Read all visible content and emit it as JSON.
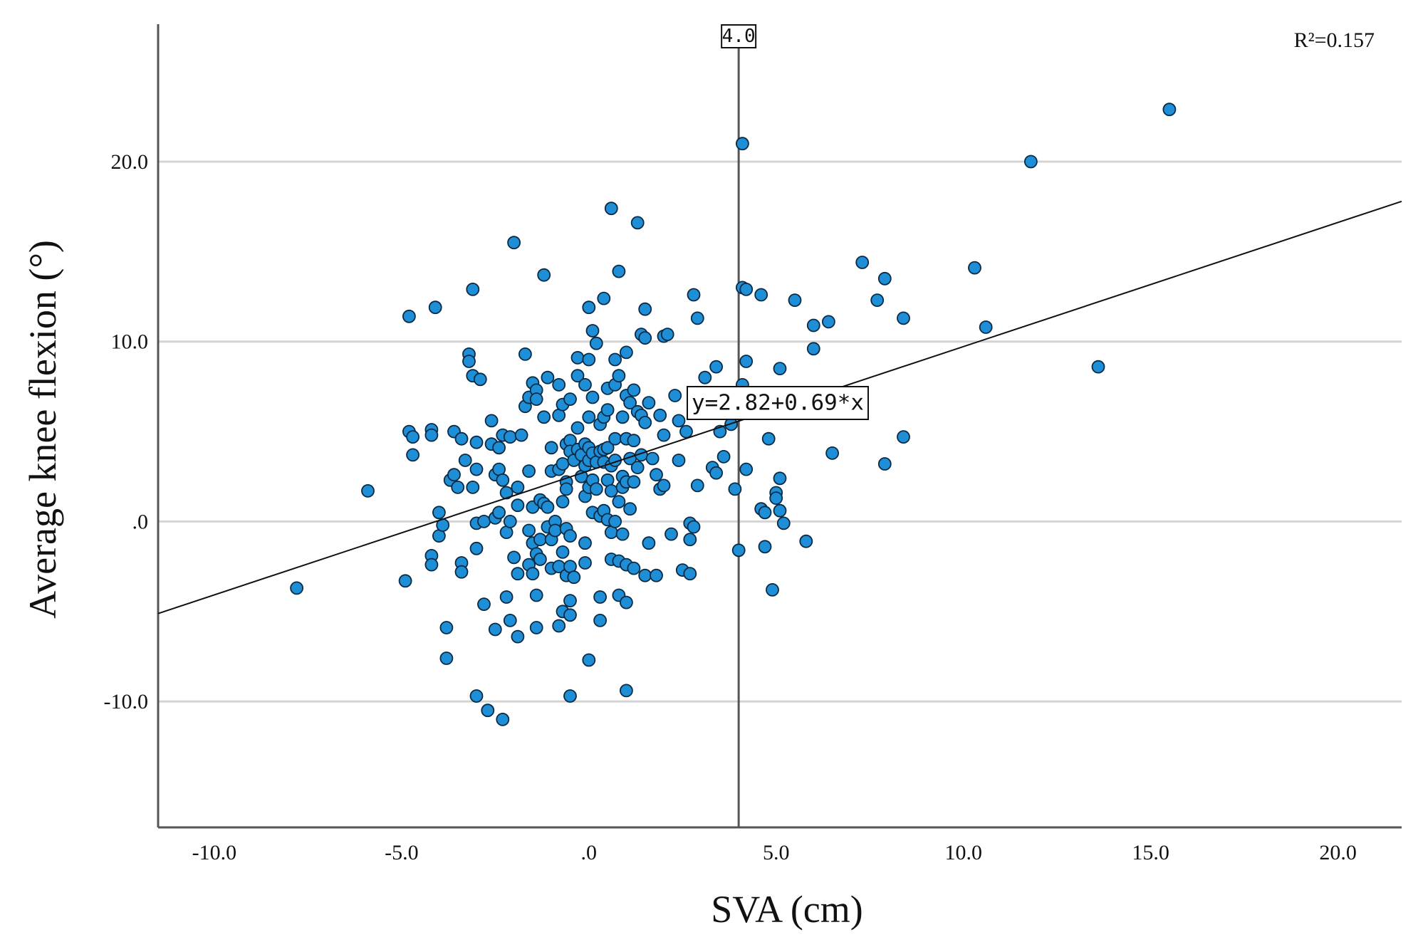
{
  "chart_data": {
    "type": "scatter",
    "title": "",
    "xlabel": "SVA (cm)",
    "ylabel": "Average knee flexion (°)",
    "xlim": [
      -11.5,
      21.7
    ],
    "ylim": [
      -17,
      27.4
    ],
    "x_ticks": [
      -10,
      -5,
      0,
      5,
      10,
      15,
      20
    ],
    "x_tick_labels": [
      "-10.0",
      "-5.0",
      ".0",
      "5.0",
      "10.0",
      "15.0",
      "20.0"
    ],
    "y_ticks": [
      -10,
      0,
      10,
      20
    ],
    "y_tick_labels": [
      "-10.0",
      ".0",
      "10.0",
      "20.0"
    ],
    "grid": "horizontal",
    "point_color": "#1e8fd6",
    "point_edge_color": "#0a2a44",
    "fit_line": {
      "intercept": 2.82,
      "slope": 0.69,
      "label": "y=2.82+0.69*x"
    },
    "reference_line": {
      "x": 4.0,
      "label": "4.0"
    },
    "r_squared_label": "R²=0.157",
    "points": [
      [
        -7.8,
        -3.7
      ],
      [
        -5.9,
        1.7
      ],
      [
        -4.9,
        -3.3
      ],
      [
        -4.8,
        11.4
      ],
      [
        -4.8,
        5.0
      ],
      [
        -4.7,
        4.7
      ],
      [
        -4.7,
        3.7
      ],
      [
        -4.2,
        5.1
      ],
      [
        -4.2,
        4.8
      ],
      [
        -4.2,
        -1.9
      ],
      [
        -4.2,
        -2.4
      ],
      [
        -4.1,
        11.9
      ],
      [
        -4.0,
        0.5
      ],
      [
        -4.0,
        -0.8
      ],
      [
        -3.9,
        -0.2
      ],
      [
        -3.8,
        -5.9
      ],
      [
        -3.8,
        -7.6
      ],
      [
        -3.7,
        2.3
      ],
      [
        -3.6,
        2.6
      ],
      [
        -3.6,
        5.0
      ],
      [
        -3.5,
        1.9
      ],
      [
        -3.4,
        4.6
      ],
      [
        -3.4,
        -2.3
      ],
      [
        -3.4,
        -2.8
      ],
      [
        -3.3,
        3.4
      ],
      [
        -3.2,
        9.3
      ],
      [
        -3.2,
        8.9
      ],
      [
        -3.1,
        8.1
      ],
      [
        -3.1,
        12.9
      ],
      [
        -3.1,
        1.9
      ],
      [
        -3.0,
        -0.1
      ],
      [
        -3.0,
        -1.5
      ],
      [
        -3.0,
        2.9
      ],
      [
        -3.0,
        4.4
      ],
      [
        -3.0,
        -9.7
      ],
      [
        -2.9,
        7.9
      ],
      [
        -2.8,
        -4.6
      ],
      [
        -2.8,
        0.0
      ],
      [
        -2.7,
        -10.5
      ],
      [
        -2.6,
        4.3
      ],
      [
        -2.6,
        5.6
      ],
      [
        -2.5,
        2.6
      ],
      [
        -2.5,
        0.2
      ],
      [
        -2.5,
        -6.0
      ],
      [
        -2.4,
        0.5
      ],
      [
        -2.4,
        2.9
      ],
      [
        -2.4,
        4.1
      ],
      [
        -2.3,
        -11.0
      ],
      [
        -2.3,
        2.3
      ],
      [
        -2.3,
        4.8
      ],
      [
        -2.2,
        1.6
      ],
      [
        -2.2,
        -0.6
      ],
      [
        -2.2,
        -4.2
      ],
      [
        -2.1,
        0.0
      ],
      [
        -2.1,
        -5.5
      ],
      [
        -2.1,
        4.7
      ],
      [
        -2.0,
        15.5
      ],
      [
        -2.0,
        -2.0
      ],
      [
        -1.9,
        1.9
      ],
      [
        -1.9,
        0.9
      ],
      [
        -1.9,
        -2.9
      ],
      [
        -1.9,
        -6.4
      ],
      [
        -1.8,
        4.8
      ],
      [
        -1.7,
        9.3
      ],
      [
        -1.7,
        6.4
      ],
      [
        -1.6,
        6.9
      ],
      [
        -1.6,
        2.8
      ],
      [
        -1.6,
        -0.5
      ],
      [
        -1.6,
        -2.4
      ],
      [
        -1.5,
        7.7
      ],
      [
        -1.5,
        0.8
      ],
      [
        -1.5,
        -1.2
      ],
      [
        -1.5,
        -2.9
      ],
      [
        -1.4,
        7.3
      ],
      [
        -1.4,
        6.8
      ],
      [
        -1.4,
        -1.8
      ],
      [
        -1.4,
        -4.1
      ],
      [
        -1.4,
        -5.9
      ],
      [
        -1.3,
        1.2
      ],
      [
        -1.3,
        -1.0
      ],
      [
        -1.3,
        -2.1
      ],
      [
        -1.2,
        13.7
      ],
      [
        -1.2,
        5.8
      ],
      [
        -1.2,
        1.0
      ],
      [
        -1.1,
        8.0
      ],
      [
        -1.1,
        0.8
      ],
      [
        -1.1,
        -0.3
      ],
      [
        -1.0,
        -1.0
      ],
      [
        -1.0,
        -2.6
      ],
      [
        -1.0,
        2.8
      ],
      [
        -1.0,
        4.1
      ],
      [
        -0.9,
        0.0
      ],
      [
        -0.9,
        -0.5
      ],
      [
        -0.8,
        7.6
      ],
      [
        -0.8,
        5.9
      ],
      [
        -0.8,
        2.9
      ],
      [
        -0.8,
        -2.5
      ],
      [
        -0.8,
        -5.8
      ],
      [
        -0.7,
        6.5
      ],
      [
        -0.7,
        3.2
      ],
      [
        -0.7,
        1.1
      ],
      [
        -0.7,
        -1.7
      ],
      [
        -0.7,
        -5.0
      ],
      [
        -0.6,
        4.3
      ],
      [
        -0.6,
        2.2
      ],
      [
        -0.6,
        1.8
      ],
      [
        -0.6,
        -0.4
      ],
      [
        -0.6,
        -3.0
      ],
      [
        -0.5,
        6.8
      ],
      [
        -0.5,
        4.5
      ],
      [
        -0.5,
        3.9
      ],
      [
        -0.5,
        -0.8
      ],
      [
        -0.5,
        -2.5
      ],
      [
        -0.5,
        -4.4
      ],
      [
        -0.5,
        -5.2
      ],
      [
        -0.5,
        -9.7
      ],
      [
        -0.4,
        3.4
      ],
      [
        -0.4,
        -3.1
      ],
      [
        -0.3,
        9.1
      ],
      [
        -0.3,
        8.1
      ],
      [
        -0.3,
        5.2
      ],
      [
        -0.3,
        4.0
      ],
      [
        -0.2,
        3.7
      ],
      [
        -0.2,
        2.5
      ],
      [
        -0.1,
        7.6
      ],
      [
        -0.1,
        4.3
      ],
      [
        -0.1,
        3.1
      ],
      [
        -0.1,
        1.4
      ],
      [
        -0.1,
        -1.2
      ],
      [
        -0.1,
        -2.3
      ],
      [
        0.0,
        11.9
      ],
      [
        0.0,
        9.0
      ],
      [
        0.0,
        5.8
      ],
      [
        0.0,
        4.1
      ],
      [
        0.0,
        3.4
      ],
      [
        0.0,
        1.9
      ],
      [
        0.0,
        -7.7
      ],
      [
        0.1,
        10.6
      ],
      [
        0.1,
        6.9
      ],
      [
        0.1,
        3.8
      ],
      [
        0.1,
        2.3
      ],
      [
        0.1,
        0.5
      ],
      [
        0.2,
        9.9
      ],
      [
        0.2,
        3.3
      ],
      [
        0.2,
        1.8
      ],
      [
        0.3,
        5.4
      ],
      [
        0.3,
        3.9
      ],
      [
        0.3,
        0.3
      ],
      [
        0.3,
        -4.2
      ],
      [
        0.3,
        -5.5
      ],
      [
        0.4,
        12.4
      ],
      [
        0.4,
        5.8
      ],
      [
        0.4,
        4.0
      ],
      [
        0.4,
        3.3
      ],
      [
        0.4,
        0.6
      ],
      [
        0.5,
        7.4
      ],
      [
        0.5,
        6.2
      ],
      [
        0.5,
        4.1
      ],
      [
        0.5,
        2.3
      ],
      [
        0.5,
        0.1
      ],
      [
        0.6,
        17.4
      ],
      [
        0.6,
        3.1
      ],
      [
        0.6,
        1.7
      ],
      [
        0.6,
        -0.6
      ],
      [
        0.6,
        -2.1
      ],
      [
        0.7,
        9.0
      ],
      [
        0.7,
        7.6
      ],
      [
        0.7,
        4.6
      ],
      [
        0.7,
        3.4
      ],
      [
        0.7,
        0.0
      ],
      [
        0.8,
        13.9
      ],
      [
        0.8,
        8.1
      ],
      [
        0.8,
        1.1
      ],
      [
        0.8,
        -2.2
      ],
      [
        0.8,
        -4.1
      ],
      [
        0.9,
        5.8
      ],
      [
        0.9,
        2.5
      ],
      [
        0.9,
        1.9
      ],
      [
        0.9,
        -0.7
      ],
      [
        1.0,
        9.4
      ],
      [
        1.0,
        7.0
      ],
      [
        1.0,
        4.6
      ],
      [
        1.0,
        2.2
      ],
      [
        1.0,
        -2.4
      ],
      [
        1.0,
        -4.5
      ],
      [
        1.0,
        -9.4
      ],
      [
        1.1,
        6.6
      ],
      [
        1.1,
        3.5
      ],
      [
        1.1,
        0.7
      ],
      [
        1.2,
        7.3
      ],
      [
        1.2,
        4.5
      ],
      [
        1.2,
        2.2
      ],
      [
        1.2,
        -2.6
      ],
      [
        1.3,
        16.6
      ],
      [
        1.3,
        6.1
      ],
      [
        1.3,
        3.0
      ],
      [
        1.4,
        10.4
      ],
      [
        1.4,
        5.9
      ],
      [
        1.4,
        3.7
      ],
      [
        1.5,
        11.8
      ],
      [
        1.5,
        10.2
      ],
      [
        1.5,
        5.5
      ],
      [
        1.5,
        -3.0
      ],
      [
        1.6,
        6.6
      ],
      [
        1.6,
        -1.2
      ],
      [
        1.7,
        3.5
      ],
      [
        1.8,
        -3.0
      ],
      [
        1.8,
        2.6
      ],
      [
        1.9,
        5.9
      ],
      [
        1.9,
        1.8
      ],
      [
        2.0,
        10.3
      ],
      [
        2.0,
        4.8
      ],
      [
        2.0,
        2.0
      ],
      [
        2.1,
        10.4
      ],
      [
        2.2,
        -0.7
      ],
      [
        2.3,
        7.0
      ],
      [
        2.4,
        5.6
      ],
      [
        2.4,
        3.4
      ],
      [
        2.5,
        -2.7
      ],
      [
        2.6,
        5.0
      ],
      [
        2.7,
        -0.1
      ],
      [
        2.7,
        -1.0
      ],
      [
        2.7,
        -2.9
      ],
      [
        2.8,
        12.6
      ],
      [
        2.8,
        -0.3
      ],
      [
        2.9,
        11.3
      ],
      [
        2.9,
        2.0
      ],
      [
        3.1,
        8.0
      ],
      [
        3.3,
        3.0
      ],
      [
        3.4,
        8.6
      ],
      [
        3.4,
        2.7
      ],
      [
        3.5,
        5.0
      ],
      [
        3.6,
        3.6
      ],
      [
        3.8,
        5.4
      ],
      [
        3.9,
        1.8
      ],
      [
        4.0,
        -1.6
      ],
      [
        4.1,
        13.0
      ],
      [
        4.1,
        7.6
      ],
      [
        4.2,
        12.9
      ],
      [
        4.2,
        8.9
      ],
      [
        4.2,
        2.9
      ],
      [
        4.1,
        21.0
      ],
      [
        4.6,
        12.6
      ],
      [
        4.6,
        0.7
      ],
      [
        4.7,
        0.5
      ],
      [
        4.7,
        -1.4
      ],
      [
        4.8,
        4.6
      ],
      [
        4.9,
        -3.8
      ],
      [
        5.0,
        1.6
      ],
      [
        5.0,
        1.3
      ],
      [
        5.1,
        8.5
      ],
      [
        5.1,
        2.4
      ],
      [
        5.1,
        0.6
      ],
      [
        5.2,
        -0.1
      ],
      [
        5.5,
        12.3
      ],
      [
        5.8,
        -1.1
      ],
      [
        6.0,
        10.9
      ],
      [
        6.0,
        9.6
      ],
      [
        6.4,
        11.1
      ],
      [
        6.5,
        3.8
      ],
      [
        7.3,
        14.4
      ],
      [
        7.7,
        12.3
      ],
      [
        7.9,
        13.5
      ],
      [
        7.9,
        3.2
      ],
      [
        8.4,
        11.3
      ],
      [
        8.4,
        4.7
      ],
      [
        10.3,
        14.1
      ],
      [
        10.6,
        10.8
      ],
      [
        11.8,
        20.0
      ],
      [
        13.6,
        8.6
      ],
      [
        15.5,
        22.9
      ]
    ]
  }
}
